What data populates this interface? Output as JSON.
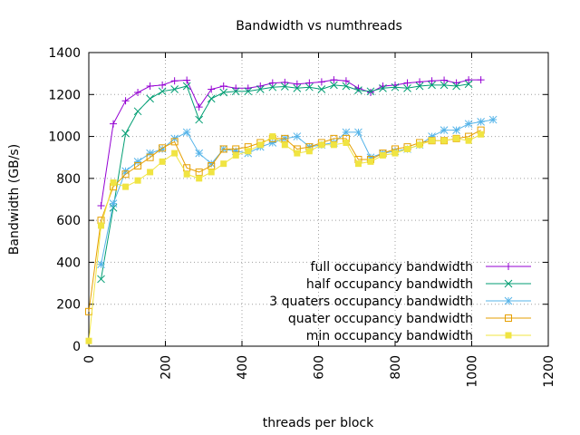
{
  "chart_data": {
    "type": "line",
    "title": "Bandwidth vs numthreads",
    "xlabel": "threads per block",
    "ylabel": "Bandwidth (GB/s)",
    "xlim": [
      0,
      1200
    ],
    "ylim": [
      0,
      1400
    ],
    "xticks": [
      0,
      200,
      400,
      600,
      800,
      1000,
      1200
    ],
    "yticks": [
      0,
      200,
      400,
      600,
      800,
      1000,
      1200,
      1400
    ],
    "grid": true,
    "legend_position": "bottom-right",
    "series": [
      {
        "name": "full occupancy bandwidth",
        "color": "#9400d3",
        "marker": "plus",
        "points": [
          [
            32,
            670
          ],
          [
            64,
            1060
          ],
          [
            96,
            1170
          ],
          [
            128,
            1210
          ],
          [
            160,
            1240
          ],
          [
            192,
            1245
          ],
          [
            224,
            1265
          ],
          [
            256,
            1268
          ],
          [
            288,
            1140
          ],
          [
            320,
            1225
          ],
          [
            352,
            1240
          ],
          [
            384,
            1230
          ],
          [
            416,
            1230
          ],
          [
            448,
            1240
          ],
          [
            480,
            1255
          ],
          [
            512,
            1258
          ],
          [
            544,
            1250
          ],
          [
            576,
            1255
          ],
          [
            608,
            1260
          ],
          [
            640,
            1270
          ],
          [
            672,
            1265
          ],
          [
            704,
            1230
          ],
          [
            736,
            1210
          ],
          [
            768,
            1240
          ],
          [
            800,
            1245
          ],
          [
            832,
            1255
          ],
          [
            864,
            1260
          ],
          [
            896,
            1265
          ],
          [
            928,
            1268
          ],
          [
            960,
            1255
          ],
          [
            992,
            1270
          ],
          [
            1024,
            1270
          ]
        ]
      },
      {
        "name": "half occupancy bandwidth",
        "color": "#009e73",
        "marker": "cross",
        "points": [
          [
            32,
            320
          ],
          [
            64,
            660
          ],
          [
            96,
            1015
          ],
          [
            128,
            1120
          ],
          [
            160,
            1180
          ],
          [
            192,
            1215
          ],
          [
            224,
            1225
          ],
          [
            256,
            1240
          ],
          [
            288,
            1080
          ],
          [
            320,
            1180
          ],
          [
            352,
            1210
          ],
          [
            384,
            1215
          ],
          [
            416,
            1215
          ],
          [
            448,
            1225
          ],
          [
            480,
            1235
          ],
          [
            512,
            1238
          ],
          [
            544,
            1230
          ],
          [
            576,
            1235
          ],
          [
            608,
            1225
          ],
          [
            640,
            1245
          ],
          [
            672,
            1240
          ],
          [
            704,
            1220
          ],
          [
            736,
            1215
          ],
          [
            768,
            1230
          ],
          [
            800,
            1235
          ],
          [
            832,
            1230
          ],
          [
            864,
            1240
          ],
          [
            896,
            1245
          ],
          [
            928,
            1245
          ],
          [
            960,
            1240
          ],
          [
            992,
            1250
          ]
        ]
      },
      {
        "name": "3 quaters occupancy bandwidth",
        "color": "#56b4e9",
        "marker": "star",
        "points": [
          [
            32,
            390
          ],
          [
            64,
            680
          ],
          [
            96,
            835
          ],
          [
            128,
            880
          ],
          [
            160,
            920
          ],
          [
            192,
            940
          ],
          [
            224,
            990
          ],
          [
            256,
            1020
          ],
          [
            288,
            920
          ],
          [
            320,
            870
          ],
          [
            352,
            940
          ],
          [
            384,
            930
          ],
          [
            416,
            920
          ],
          [
            448,
            950
          ],
          [
            480,
            970
          ],
          [
            512,
            990
          ],
          [
            544,
            1000
          ],
          [
            576,
            950
          ],
          [
            608,
            960
          ],
          [
            640,
            970
          ],
          [
            672,
            1020
          ],
          [
            704,
            1020
          ],
          [
            736,
            900
          ],
          [
            768,
            920
          ],
          [
            800,
            930
          ],
          [
            832,
            940
          ],
          [
            864,
            960
          ],
          [
            896,
            1000
          ],
          [
            928,
            1030
          ],
          [
            960,
            1030
          ],
          [
            992,
            1060
          ],
          [
            1024,
            1070
          ],
          [
            1056,
            1080
          ]
        ]
      },
      {
        "name": "quater occupancy bandwidth",
        "color": "#e69f00",
        "marker": "open-square",
        "points": [
          [
            0,
            165
          ],
          [
            32,
            600
          ],
          [
            64,
            760
          ],
          [
            96,
            820
          ],
          [
            128,
            860
          ],
          [
            160,
            900
          ],
          [
            192,
            945
          ],
          [
            224,
            975
          ],
          [
            256,
            850
          ],
          [
            288,
            830
          ],
          [
            320,
            860
          ],
          [
            352,
            940
          ],
          [
            384,
            940
          ],
          [
            416,
            950
          ],
          [
            448,
            970
          ],
          [
            480,
            990
          ],
          [
            512,
            990
          ],
          [
            544,
            940
          ],
          [
            576,
            950
          ],
          [
            608,
            970
          ],
          [
            640,
            990
          ],
          [
            672,
            990
          ],
          [
            704,
            890
          ],
          [
            736,
            890
          ],
          [
            768,
            920
          ],
          [
            800,
            940
          ],
          [
            832,
            950
          ],
          [
            864,
            970
          ],
          [
            896,
            980
          ],
          [
            928,
            980
          ],
          [
            960,
            990
          ],
          [
            992,
            1000
          ],
          [
            1024,
            1030
          ]
        ]
      },
      {
        "name": "min occupancy  bandwidth",
        "color": "#f0e442",
        "marker": "filled-square",
        "points": [
          [
            0,
            25
          ],
          [
            32,
            575
          ],
          [
            64,
            780
          ],
          [
            96,
            760
          ],
          [
            128,
            790
          ],
          [
            160,
            830
          ],
          [
            192,
            880
          ],
          [
            224,
            920
          ],
          [
            256,
            820
          ],
          [
            288,
            800
          ],
          [
            320,
            830
          ],
          [
            352,
            870
          ],
          [
            384,
            910
          ],
          [
            416,
            930
          ],
          [
            448,
            960
          ],
          [
            480,
            1000
          ],
          [
            512,
            960
          ],
          [
            544,
            920
          ],
          [
            576,
            930
          ],
          [
            608,
            960
          ],
          [
            640,
            960
          ],
          [
            672,
            970
          ],
          [
            704,
            870
          ],
          [
            736,
            880
          ],
          [
            768,
            910
          ],
          [
            800,
            920
          ],
          [
            832,
            940
          ],
          [
            864,
            960
          ],
          [
            896,
            980
          ],
          [
            928,
            980
          ],
          [
            960,
            990
          ],
          [
            992,
            980
          ],
          [
            1024,
            1010
          ]
        ]
      }
    ]
  }
}
